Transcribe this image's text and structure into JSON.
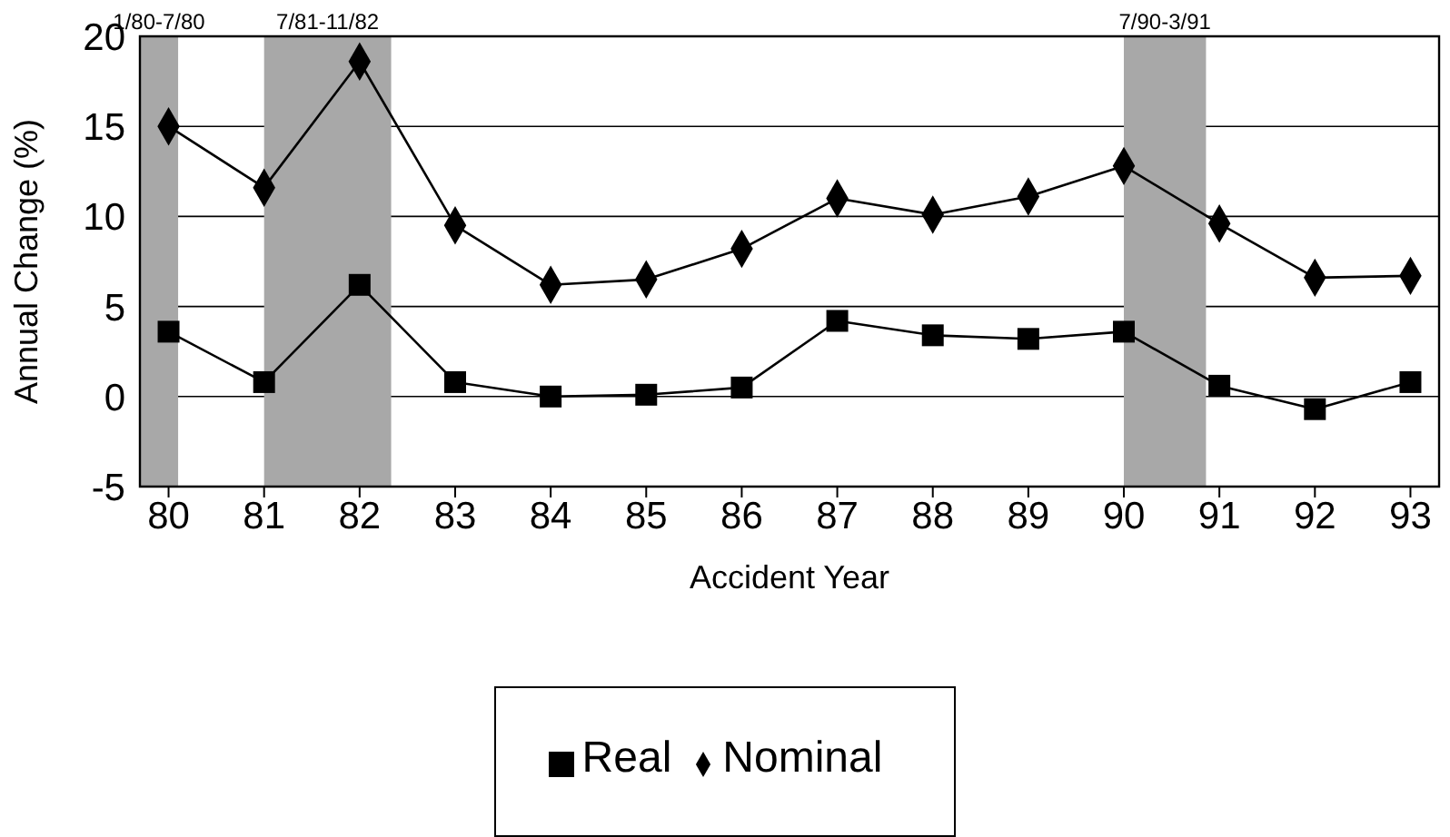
{
  "chart_data": {
    "type": "line",
    "xlabel": "Accident Year",
    "ylabel": "Annual Change (%)",
    "x": [
      80,
      81,
      82,
      83,
      84,
      85,
      86,
      87,
      88,
      89,
      90,
      91,
      92,
      93
    ],
    "xlim": [
      79.7,
      93.3
    ],
    "xticks": [
      80,
      81,
      82,
      83,
      84,
      85,
      86,
      87,
      88,
      89,
      90,
      91,
      92,
      93
    ],
    "ylim": [
      -5,
      20
    ],
    "yticks": [
      -5,
      0,
      5,
      10,
      15,
      20
    ],
    "series": [
      {
        "name": "Real",
        "color": "#000000",
        "marker": "square",
        "values": [
          3.6,
          0.8,
          6.2,
          0.8,
          0,
          0.1,
          0.5,
          4.2,
          3.4,
          3.2,
          3.6,
          0.6,
          -0.7,
          0.8
        ]
      },
      {
        "name": "Nominal",
        "color": "#000000",
        "marker": "diamond",
        "values": [
          15,
          11.6,
          18.6,
          9.5,
          6.2,
          6.5,
          8.2,
          11,
          10.1,
          11.1,
          12.8,
          9.6,
          6.6,
          6.7
        ]
      }
    ],
    "bands": [
      {
        "axis": "x",
        "from": 79.7,
        "to": 80.1,
        "label": "1/80-7/80",
        "color": "#a8a8a8"
      },
      {
        "axis": "x",
        "from": 81,
        "to": 82.33,
        "label": "7/81-11/82",
        "color": "#a8a8a8"
      },
      {
        "axis": "x",
        "from": 90,
        "to": 90.86,
        "label": "7/90-3/91",
        "color": "#a8a8a8"
      }
    ],
    "grid": "y",
    "legend": "bottom",
    "line_style": "solid"
  }
}
